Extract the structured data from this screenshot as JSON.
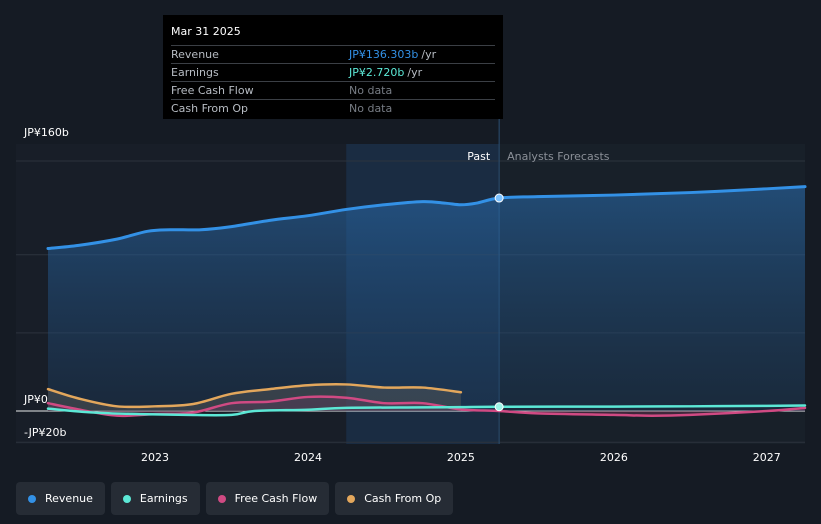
{
  "tooltip": {
    "date": "Mar 31 2025",
    "rows": [
      {
        "label": "Revenue",
        "value": "JP¥136.303b",
        "unit": "/yr",
        "color": "#3391e6"
      },
      {
        "label": "Earnings",
        "value": "JP¥2.720b",
        "unit": "/yr",
        "color": "#5ce8d6"
      },
      {
        "label": "Free Cash Flow",
        "value": "No data",
        "unit": "",
        "color": "#777c84"
      },
      {
        "label": "Cash From Op",
        "value": "No data",
        "unit": "",
        "color": "#777c84"
      }
    ]
  },
  "legend": [
    {
      "label": "Revenue",
      "color": "#3391e6"
    },
    {
      "label": "Earnings",
      "color": "#5ce8d6"
    },
    {
      "label": "Free Cash Flow",
      "color": "#d04a83"
    },
    {
      "label": "Cash From Op",
      "color": "#e3a75c"
    }
  ],
  "chart_data": {
    "type": "line",
    "title": "",
    "xlabel": "",
    "ylabel": "",
    "xlim": [
      2022.3,
      2027.25
    ],
    "ylim": [
      -20,
      160
    ],
    "y_tick_labels": [
      {
        "value": 160,
        "label": "JP¥160b"
      },
      {
        "value": 0,
        "label": "JP¥0"
      },
      {
        "value": -20,
        "label": "-JP¥20b"
      }
    ],
    "x_tick_labels": [
      {
        "value": 2023,
        "label": "2023"
      },
      {
        "value": 2024,
        "label": "2024"
      },
      {
        "value": 2025,
        "label": "2025"
      },
      {
        "value": 2026,
        "label": "2026"
      },
      {
        "value": 2027,
        "label": "2027"
      }
    ],
    "past_label": "Past",
    "forecast_label": "Analysts Forecasts",
    "highlight_start": 2024.25,
    "divider": 2025.25,
    "marker_x": 2025.25,
    "series": [
      {
        "name": "Revenue",
        "color": "#3391e6",
        "area": true,
        "points": [
          [
            2022.3,
            104
          ],
          [
            2022.5,
            106
          ],
          [
            2022.75,
            110
          ],
          [
            2022.95,
            115
          ],
          [
            2023.1,
            116
          ],
          [
            2023.3,
            116
          ],
          [
            2023.5,
            118
          ],
          [
            2023.75,
            122
          ],
          [
            2024.0,
            125
          ],
          [
            2024.25,
            129
          ],
          [
            2024.5,
            132
          ],
          [
            2024.75,
            134
          ],
          [
            2024.9,
            133
          ],
          [
            2025.0,
            132
          ],
          [
            2025.1,
            133
          ],
          [
            2025.25,
            136.3
          ],
          [
            2025.5,
            137.2
          ],
          [
            2026.0,
            138.2
          ],
          [
            2026.5,
            139.8
          ],
          [
            2027.0,
            142.2
          ],
          [
            2027.25,
            143.6
          ]
        ]
      },
      {
        "name": "Earnings",
        "color": "#5ce8d6",
        "points": [
          [
            2022.3,
            1.5
          ],
          [
            2022.6,
            -1
          ],
          [
            2022.9,
            -2
          ],
          [
            2023.2,
            -2.5
          ],
          [
            2023.5,
            -2.5
          ],
          [
            2023.65,
            0
          ],
          [
            2024.0,
            0.8
          ],
          [
            2024.25,
            2.0
          ],
          [
            2024.75,
            2.3
          ],
          [
            2025.0,
            2.5
          ],
          [
            2025.25,
            2.72
          ],
          [
            2026.0,
            2.8
          ],
          [
            2026.5,
            3.0
          ],
          [
            2027.0,
            3.3
          ],
          [
            2027.25,
            3.5
          ]
        ]
      },
      {
        "name": "Free Cash Flow",
        "color": "#d04a83",
        "points": [
          [
            2022.3,
            5
          ],
          [
            2022.5,
            1
          ],
          [
            2022.75,
            -3
          ],
          [
            2023.0,
            -2
          ],
          [
            2023.25,
            -1
          ],
          [
            2023.5,
            5
          ],
          [
            2023.75,
            6
          ],
          [
            2024.0,
            9
          ],
          [
            2024.25,
            8.5
          ],
          [
            2024.5,
            5
          ],
          [
            2024.75,
            5
          ],
          [
            2025.0,
            1
          ],
          [
            2025.25,
            0
          ],
          [
            2025.5,
            -1.5
          ],
          [
            2026.0,
            -2.5
          ],
          [
            2026.25,
            -3
          ],
          [
            2026.5,
            -2.5
          ],
          [
            2027.0,
            0
          ],
          [
            2027.25,
            2
          ]
        ]
      },
      {
        "name": "Cash From Op",
        "color": "#e3a75c",
        "area": true,
        "points": [
          [
            2022.3,
            14
          ],
          [
            2022.5,
            8
          ],
          [
            2022.75,
            3
          ],
          [
            2023.0,
            3
          ],
          [
            2023.25,
            4.5
          ],
          [
            2023.5,
            11
          ],
          [
            2023.75,
            14
          ],
          [
            2024.0,
            16.5
          ],
          [
            2024.25,
            17
          ],
          [
            2024.5,
            15
          ],
          [
            2024.75,
            15
          ],
          [
            2025.0,
            12
          ]
        ]
      }
    ]
  }
}
